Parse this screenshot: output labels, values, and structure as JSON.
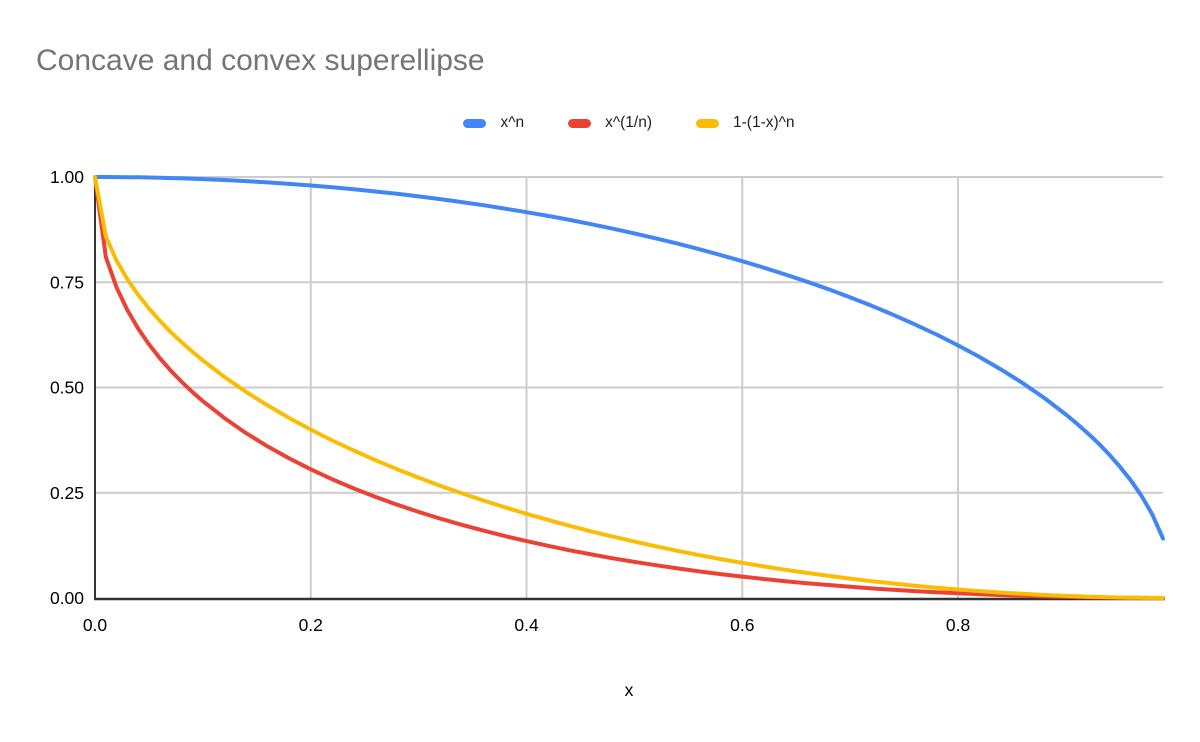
{
  "chart_data": {
    "type": "line",
    "title": "Concave and convex superellipse",
    "xlabel": "x",
    "ylabel": "",
    "legend_position": "top",
    "grid": true,
    "xlim": [
      0,
      0.99
    ],
    "ylim": [
      0,
      1
    ],
    "x_ticks": [
      "0.0",
      "0.2",
      "0.4",
      "0.6",
      "0.8"
    ],
    "x_tick_values": [
      0,
      0.2,
      0.4,
      0.6,
      0.8
    ],
    "y_ticks": [
      "0.00",
      "0.25",
      "0.50",
      "0.75",
      "1.00"
    ],
    "y_tick_values": [
      0,
      0.25,
      0.5,
      0.75,
      1
    ],
    "colors": {
      "grid": "#cccccc",
      "axis": "#333333",
      "tick_label": "#000000",
      "title": "#757575"
    },
    "x": [
      0,
      0.01,
      0.02,
      0.03,
      0.04,
      0.05,
      0.06,
      0.07,
      0.08,
      0.09,
      0.1,
      0.12,
      0.14,
      0.16,
      0.18,
      0.2,
      0.22,
      0.24,
      0.26,
      0.28,
      0.3,
      0.32,
      0.34,
      0.36,
      0.38,
      0.4,
      0.42,
      0.44,
      0.46,
      0.48,
      0.5,
      0.52,
      0.54,
      0.56,
      0.58,
      0.6,
      0.62,
      0.64,
      0.66,
      0.68,
      0.7,
      0.72,
      0.74,
      0.76,
      0.78,
      0.8,
      0.82,
      0.84,
      0.86,
      0.88,
      0.9,
      0.91,
      0.92,
      0.93,
      0.94,
      0.95,
      0.96,
      0.97,
      0.98,
      0.99
    ],
    "series": [
      {
        "name": "x^n",
        "color": "#4285F4",
        "values": [
          1,
          1,
          0.9998,
          0.9996,
          0.9992,
          0.9987,
          0.9982,
          0.9975,
          0.9968,
          0.9959,
          0.995,
          0.9928,
          0.9902,
          0.9871,
          0.9837,
          0.9798,
          0.9755,
          0.9708,
          0.9656,
          0.96,
          0.9539,
          0.9474,
          0.9404,
          0.933,
          0.925,
          0.9165,
          0.9075,
          0.898,
          0.8879,
          0.8773,
          0.866,
          0.8542,
          0.8417,
          0.8285,
          0.8146,
          0.8,
          0.7846,
          0.7684,
          0.7513,
          0.7332,
          0.7141,
          0.694,
          0.6726,
          0.6499,
          0.6258,
          0.6,
          0.5724,
          0.5426,
          0.5103,
          0.475,
          0.4359,
          0.4146,
          0.3919,
          0.3676,
          0.3412,
          0.3122,
          0.28,
          0.2431,
          0.199,
          0.1411
        ]
      },
      {
        "name": "x^(1/n)",
        "color": "#EA4335",
        "values": [
          1,
          0.81,
          0.7372,
          0.6836,
          0.64,
          0.6028,
          0.5701,
          0.5409,
          0.5143,
          0.49,
          0.4675,
          0.4272,
          0.3917,
          0.36,
          0.3315,
          0.3056,
          0.2819,
          0.2602,
          0.2402,
          0.2217,
          0.2046,
          0.1886,
          0.1738,
          0.16,
          0.1471,
          0.1351,
          0.1239,
          0.1133,
          0.1035,
          0.0944,
          0.0858,
          0.0778,
          0.0703,
          0.0633,
          0.0568,
          0.0508,
          0.0452,
          0.04,
          0.0352,
          0.0308,
          0.0267,
          0.0229,
          0.0195,
          0.0164,
          0.0136,
          0.0111,
          0.0089,
          0.007,
          0.0053,
          0.0038,
          0.0026,
          0.0021,
          0.0017,
          0.0013,
          0.0009,
          0.0006,
          0.0004,
          0.0002,
          0.0001,
          0
        ]
      },
      {
        "name": "1-(1-x)^n",
        "color": "#FBBC04",
        "values": [
          1,
          0.8589,
          0.801,
          0.7569,
          0.72,
          0.6878,
          0.6588,
          0.6324,
          0.6081,
          0.5854,
          0.5641,
          0.525,
          0.4897,
          0.4574,
          0.4276,
          0.4,
          0.3742,
          0.3501,
          0.3274,
          0.306,
          0.2859,
          0.2668,
          0.2487,
          0.2316,
          0.2154,
          0.2,
          0.1854,
          0.1715,
          0.1583,
          0.1458,
          0.134,
          0.1227,
          0.1121,
          0.102,
          0.0925,
          0.0835,
          0.075,
          0.0671,
          0.0596,
          0.0526,
          0.0461,
          0.04,
          0.0344,
          0.0292,
          0.0245,
          0.0202,
          0.0163,
          0.0129,
          0.0099,
          0.0072,
          0.005,
          0.0041,
          0.0032,
          0.0025,
          0.0018,
          0.0013,
          0.0008,
          0.0005,
          0.0002,
          0.0001
        ]
      }
    ]
  }
}
